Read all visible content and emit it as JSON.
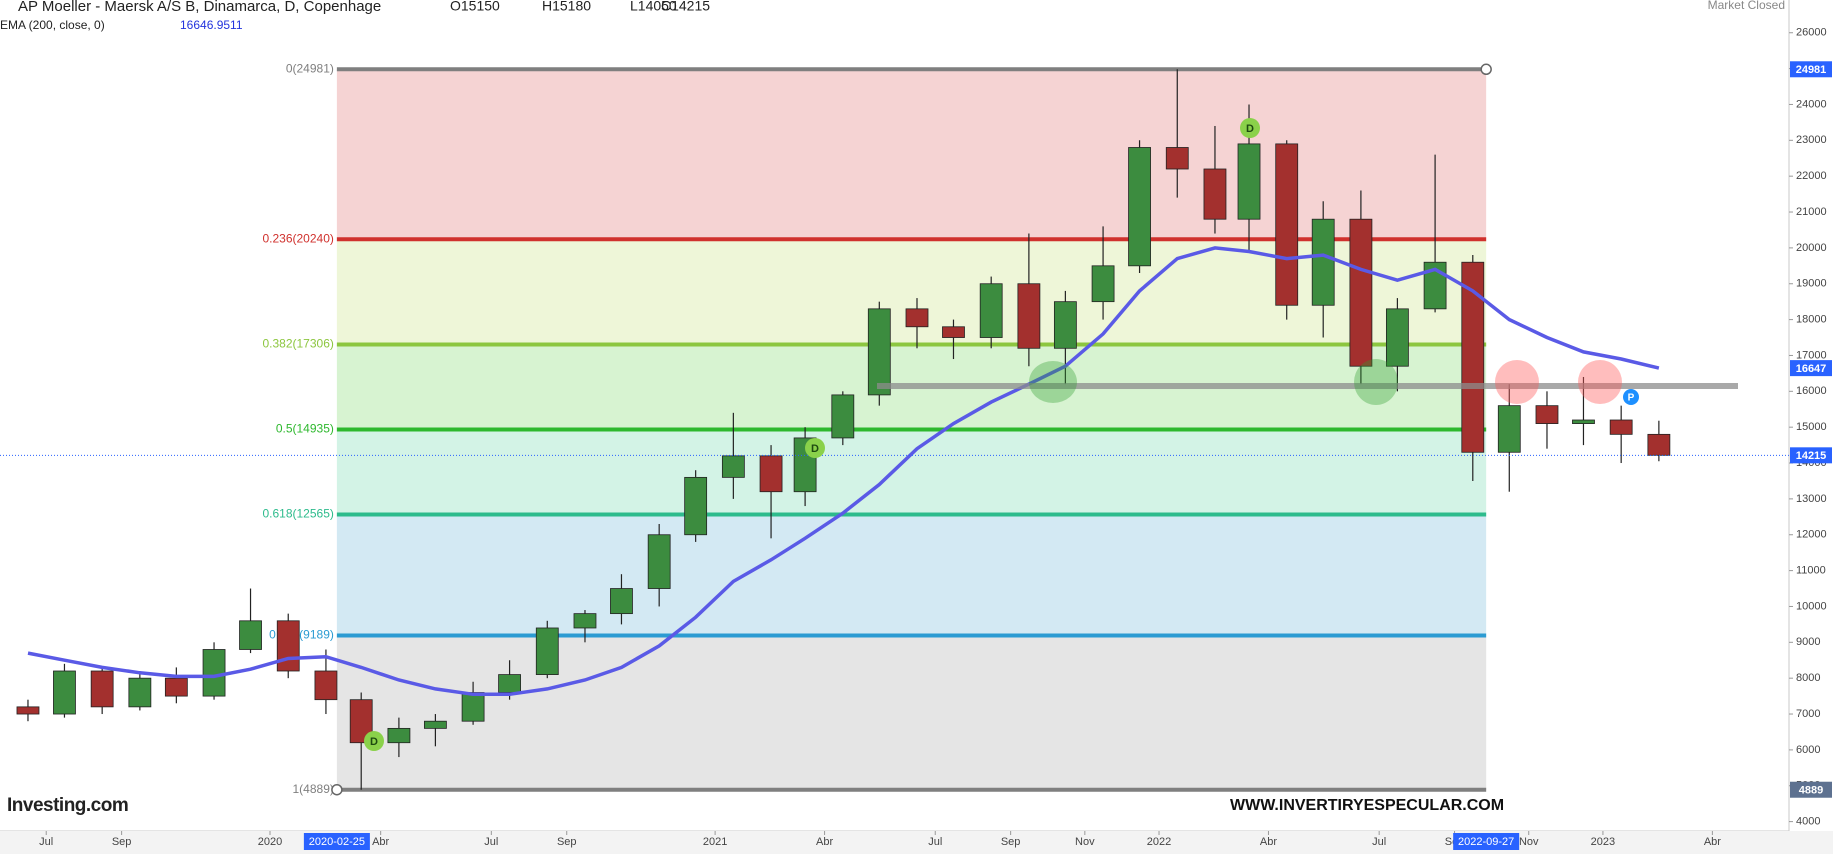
{
  "chart_data": {
    "type": "candlestick",
    "title": "AP Moeller - Maersk A/S B, Dinamarca, D, Copenhage",
    "ohlc": [
      "O15150",
      "H15180",
      "L14050",
      "C14215"
    ],
    "status": "Market Closed",
    "watermark": "WWW.INVERTIRYESPECULAR.COM",
    "brand": "Investing.com",
    "markers": [
      "D",
      "D",
      "D",
      "P"
    ],
    "up_color": "#3c8c3f",
    "down_color": "#a3302e",
    "x": [
      "2019-06",
      "2019-07",
      "2019-08",
      "2019-09",
      "2019-10",
      "2019-11",
      "2019-12",
      "2020-01",
      "2020-02",
      "2020-03",
      "2020-04",
      "2020-05",
      "2020-06",
      "2020-07",
      "2020-08",
      "2020-09",
      "2020-10",
      "2020-11",
      "2020-12",
      "2021-01",
      "2021-02",
      "2021-03",
      "2021-04",
      "2021-05",
      "2021-06",
      "2021-07",
      "2021-08",
      "2021-09",
      "2021-10",
      "2021-11",
      "2021-12",
      "2022-01",
      "2022-02",
      "2022-03",
      "2022-04",
      "2022-05",
      "2022-06",
      "2022-07",
      "2022-08",
      "2022-09",
      "2022-10",
      "2022-11",
      "2022-12",
      "2023-01",
      "2023-02"
    ],
    "open": [
      7200,
      7000,
      8200,
      7200,
      8000,
      7500,
      8800,
      9600,
      8200,
      7400,
      6200,
      6600,
      6800,
      7600,
      8100,
      9400,
      9800,
      10500,
      12000,
      13600,
      14200,
      13200,
      14700,
      15900,
      18300,
      17800,
      17500,
      19000,
      17200,
      18500,
      19500,
      22800,
      22200,
      20800,
      22900,
      18400,
      20800,
      16700,
      18300,
      19600,
      14300,
      15600,
      15100,
      15200,
      14800
    ],
    "high": [
      7400,
      8400,
      8300,
      8200,
      8300,
      9000,
      10500,
      9800,
      8800,
      7600,
      6900,
      7000,
      7900,
      8500,
      9600,
      9900,
      10900,
      12300,
      13800,
      15400,
      14500,
      15000,
      16000,
      18500,
      18600,
      18000,
      19200,
      20400,
      18800,
      20600,
      23000,
      24981,
      23400,
      24000,
      23000,
      21300,
      21600,
      18600,
      22600,
      19800,
      16200,
      16000,
      16400,
      15600,
      15180
    ],
    "low": [
      6800,
      6900,
      7000,
      7100,
      7300,
      7400,
      8700,
      8000,
      7000,
      4889,
      5800,
      6100,
      6700,
      7400,
      8000,
      9000,
      9500,
      10000,
      11800,
      13000,
      11900,
      12800,
      14500,
      15600,
      17200,
      16900,
      17200,
      16700,
      16200,
      18000,
      19300,
      21400,
      20400,
      19900,
      18000,
      17500,
      16200,
      16000,
      18200,
      13500,
      13200,
      14400,
      14500,
      14000,
      14050
    ],
    "close": [
      7000,
      8200,
      7200,
      8000,
      7500,
      8800,
      9600,
      8200,
      7400,
      6200,
      6600,
      6800,
      7600,
      8100,
      9400,
      9800,
      10500,
      12000,
      13600,
      14200,
      13200,
      14700,
      15900,
      18300,
      17800,
      17500,
      19000,
      17200,
      18500,
      19500,
      22800,
      22200,
      20800,
      22900,
      18400,
      20800,
      16700,
      18300,
      19600,
      14300,
      15600,
      15100,
      15200,
      14800,
      14215
    ],
    "ema": {
      "name": "EMA (200, close, 0)",
      "value": 16646.9511,
      "color": "#5a5ae6",
      "values": [
        8700,
        8500,
        8300,
        8150,
        8050,
        8050,
        8250,
        8550,
        8600,
        8300,
        7950,
        7700,
        7550,
        7550,
        7700,
        7950,
        8300,
        8900,
        9700,
        10700,
        11300,
        11900,
        12600,
        13400,
        14400,
        15100,
        15700,
        16200,
        16700,
        17600,
        18800,
        19700,
        20000,
        19900,
        19700,
        19800,
        19400,
        19100,
        19400,
        18800,
        18000,
        17500,
        17100,
        16900,
        16647
      ]
    },
    "fib": {
      "start": "2020-02-25",
      "end": "2022-09-27",
      "levels": [
        {
          "label": "0(24981)",
          "value": 24981,
          "color": "#7f7f7f"
        },
        {
          "label": "0.236(20240)",
          "value": 20240,
          "color": "#d0312d"
        },
        {
          "label": "0.382(17306)",
          "value": 17306,
          "color": "#8cc63f"
        },
        {
          "label": "0.5(14935)",
          "value": 14935,
          "color": "#2eb82e"
        },
        {
          "label": "0.618(12565)",
          "value": 12565,
          "color": "#2dbb8c"
        },
        {
          "label": "0.786(9189)",
          "value": 9189,
          "color": "#2b9bd2"
        },
        {
          "label": "1(4889)",
          "value": 4889,
          "color": "#7f7f7f"
        }
      ],
      "band_colors": [
        "#f5d3d3",
        "#eef6d8",
        "#d7f3d1",
        "#d3f3e6",
        "#d3e9f3",
        "#e5e5e5"
      ]
    },
    "price_tags": [
      {
        "value": 24981,
        "color": "#2962ff"
      },
      {
        "value": 16647,
        "color": "#2962ff"
      },
      {
        "value": 14215,
        "color": "#2962ff"
      },
      {
        "value": 4889,
        "color": "#5d7190"
      }
    ],
    "xlim": [
      "2019-05-24",
      "2023-06-03"
    ],
    "xticks": [
      {
        "value": "2019-07-01",
        "label": "Jul"
      },
      {
        "value": "2019-09-01",
        "label": "Sep"
      },
      {
        "value": "2020-01-01",
        "label": "2020"
      },
      {
        "value": "2020-04-01",
        "label": "Abr"
      },
      {
        "value": "2020-07-01",
        "label": "Jul"
      },
      {
        "value": "2020-09-01",
        "label": "Sep"
      },
      {
        "value": "2021-01-01",
        "label": "2021"
      },
      {
        "value": "2021-04-01",
        "label": "Abr"
      },
      {
        "value": "2021-07-01",
        "label": "Jul"
      },
      {
        "value": "2021-09-01",
        "label": "Sep"
      },
      {
        "value": "2021-11-01",
        "label": "Nov"
      },
      {
        "value": "2022-01-01",
        "label": "2022"
      },
      {
        "value": "2022-04-01",
        "label": "Abr"
      },
      {
        "value": "2022-07-01",
        "label": "Jul"
      },
      {
        "value": "2022-09-01",
        "label": "Sep"
      },
      {
        "value": "2022-11-01",
        "label": "Nov"
      },
      {
        "value": "2023-01-01",
        "label": "2023"
      },
      {
        "value": "2023-04-01",
        "label": "Abr"
      }
    ],
    "ylim": [
      3738,
      26913
    ],
    "yticks": [
      4000,
      5000,
      6000,
      7000,
      8000,
      9000,
      10000,
      11000,
      12000,
      13000,
      14000,
      15000,
      16000,
      17000,
      18000,
      19000,
      20000,
      21000,
      22000,
      23000,
      24000,
      25000,
      26000
    ]
  }
}
